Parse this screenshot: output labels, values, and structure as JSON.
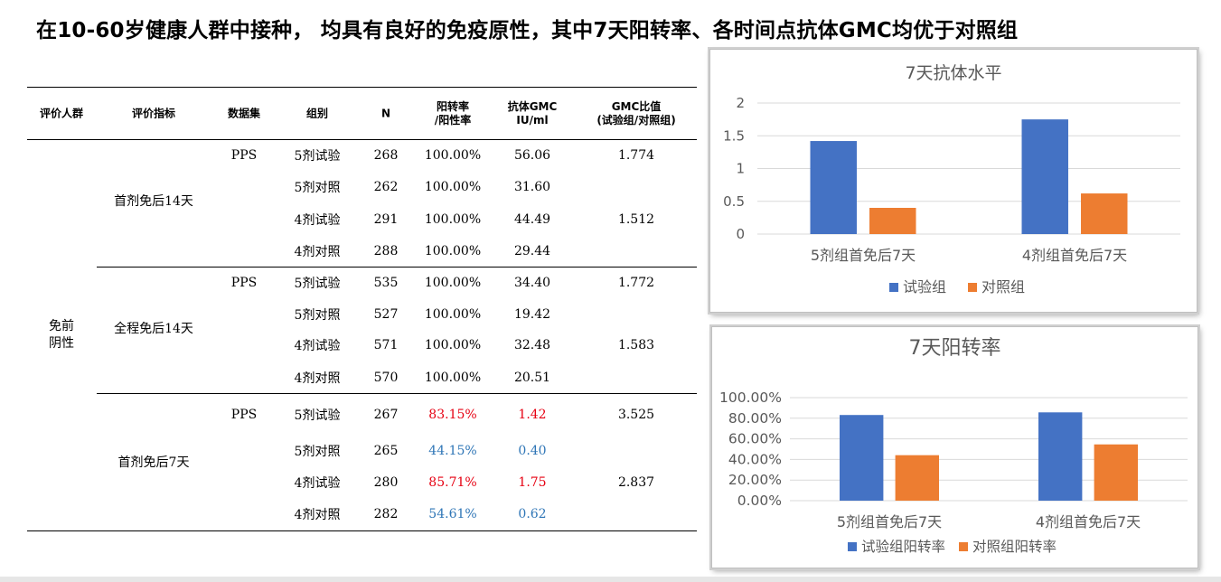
{
  "title": "在10-60岁健康人群中接种， 均具有良好的免疫原性，其中7天阳转率、各时间点抗体GMC均优于对照组",
  "table": {
    "headers": [
      "评价人群",
      "评价指标",
      "数据集",
      "组别",
      "N",
      "阳转率\n/阳性率",
      "抗体GMC\nIU/ml",
      "GMC比值\n(试验组/对照组)"
    ],
    "population": "免前\n阴性",
    "sections": [
      {
        "indicator": "首剂免后14天",
        "dataset": "PPS",
        "rows": [
          {
            "group": "5剂试验",
            "n": "268",
            "rate": "100.00%",
            "gmc": "56.06",
            "ratio": "1.774"
          },
          {
            "group": "5剂对照",
            "n": "262",
            "rate": "100.00%",
            "gmc": "31.60",
            "ratio": ""
          },
          {
            "group": "4剂试验",
            "n": "291",
            "rate": "100.00%",
            "gmc": "44.49",
            "ratio": "1.512"
          },
          {
            "group": "4剂对照",
            "n": "288",
            "rate": "100.00%",
            "gmc": "29.44",
            "ratio": ""
          }
        ]
      },
      {
        "indicator": "全程免后14天",
        "dataset": "PPS",
        "rows": [
          {
            "group": "5剂试验",
            "n": "535",
            "rate": "100.00%",
            "gmc": "34.40",
            "ratio": "1.772"
          },
          {
            "group": "5剂对照",
            "n": "527",
            "rate": "100.00%",
            "gmc": "19.42",
            "ratio": ""
          },
          {
            "group": "4剂试验",
            "n": "571",
            "rate": "100.00%",
            "gmc": "32.48",
            "ratio": "1.583"
          },
          {
            "group": "4剂对照",
            "n": "570",
            "rate": "100.00%",
            "gmc": "20.51",
            "ratio": ""
          }
        ]
      },
      {
        "indicator": "首剂免后7天",
        "dataset": "PPS",
        "rows": [
          {
            "group": "5剂试验",
            "n": "267",
            "rate": "83.15%",
            "gmc": "1.42",
            "ratio": "3.525",
            "tone": "red"
          },
          {
            "group": "5剂对照",
            "n": "265",
            "rate": "44.15%",
            "gmc": "0.40",
            "ratio": "",
            "tone": "blue"
          },
          {
            "group": "4剂试验",
            "n": "280",
            "rate": "85.71%",
            "gmc": "1.75",
            "ratio": "2.837",
            "tone": "red"
          },
          {
            "group": "4剂对照",
            "n": "282",
            "rate": "54.61%",
            "gmc": "0.62",
            "ratio": "",
            "tone": "blue"
          }
        ]
      }
    ]
  },
  "chart_data": [
    {
      "type": "bar",
      "title": "7天抗体水平",
      "categories": [
        "5剂组首免后7天",
        "4剂组首免后7天"
      ],
      "series": [
        {
          "name": "试验组",
          "values": [
            1.42,
            1.75
          ],
          "color": "#4472c4"
        },
        {
          "name": "对照组",
          "values": [
            0.4,
            0.62
          ],
          "color": "#ed7d31"
        }
      ],
      "yticks": [
        "0",
        "0.5",
        "1",
        "1.5",
        "2"
      ],
      "ylim": [
        0,
        2
      ],
      "legend": "bottom",
      "grid": true
    },
    {
      "type": "bar",
      "title": "7天阳转率",
      "categories": [
        "5剂组首免后7天",
        "4剂组首免后7天"
      ],
      "series": [
        {
          "name": "试验组阳转率",
          "values": [
            83.15,
            85.71
          ],
          "color": "#4472c4"
        },
        {
          "name": "对照组阳转率",
          "values": [
            44.15,
            54.61
          ],
          "color": "#ed7d31"
        }
      ],
      "yticks": [
        "0.00%",
        "20.00%",
        "40.00%",
        "60.00%",
        "80.00%",
        "100.00%"
      ],
      "ylim": [
        0,
        100
      ],
      "legend": "bottom",
      "grid": true
    }
  ]
}
